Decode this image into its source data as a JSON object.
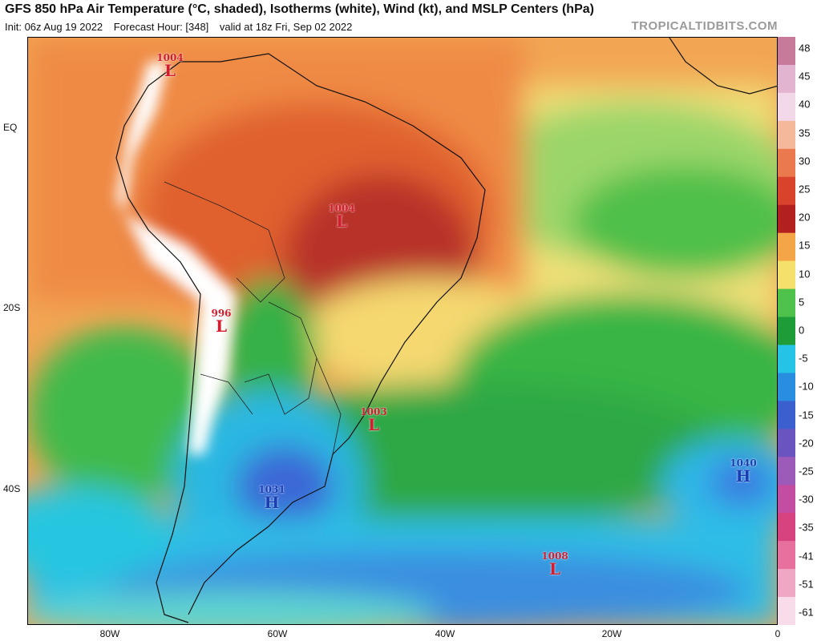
{
  "header": {
    "title": "GFS 850 hPa Air Temperature (°C, shaded), Isotherms (white), Wind (kt), and MSLP Centers (hPa)",
    "init": "Init: 06z Aug 19 2022",
    "forecast_hour": "Forecast Hour: [348]",
    "valid": "valid at 18z Fri, Sep 02 2022",
    "brand": "TROPICALTIDBITS.COM"
  },
  "axes": {
    "lat_labels": [
      "EQ",
      "20S",
      "40S"
    ],
    "lon_labels": [
      "80W",
      "60W",
      "40W",
      "20W",
      "0"
    ]
  },
  "colorbar": {
    "labels": [
      "48",
      "45",
      "40",
      "35",
      "30",
      "25",
      "20",
      "15",
      "10",
      "5",
      "0",
      "-5",
      "-10",
      "-15",
      "-20",
      "-25",
      "-30",
      "-35",
      "-41",
      "-51",
      "-61"
    ],
    "colors": [
      "#c77a9a",
      "#e3b4cf",
      "#f3d8ea",
      "#f5b89a",
      "#ea7a4e",
      "#d9422b",
      "#b22020",
      "#f3a548",
      "#f5e06b",
      "#4ec24a",
      "#1e9c38",
      "#25c4e6",
      "#2a8ee0",
      "#3c5fd0",
      "#6a55c0",
      "#9c5bb8",
      "#c34da0",
      "#d7437f",
      "#e8709e",
      "#f0a7c3",
      "#f8dce9"
    ]
  },
  "pressure_centers": [
    {
      "type": "L",
      "value": "1004"
    },
    {
      "type": "L",
      "value": "1004"
    },
    {
      "type": "L",
      "value": "996"
    },
    {
      "type": "L",
      "value": "1003"
    },
    {
      "type": "H",
      "value": "1031"
    },
    {
      "type": "H",
      "value": "1040"
    },
    {
      "type": "L",
      "value": "1008"
    }
  ]
}
